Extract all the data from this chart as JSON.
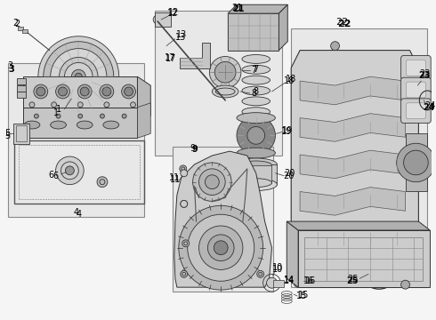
{
  "bg": "#ffffff",
  "fig_bg": "#f5f5f5",
  "lc": "#333333",
  "lw": 0.6,
  "box_fc": "#e8e8e8",
  "box_ec": "#888888",
  "part_fc": "#d8d8d8",
  "part_ec": "#333333"
}
